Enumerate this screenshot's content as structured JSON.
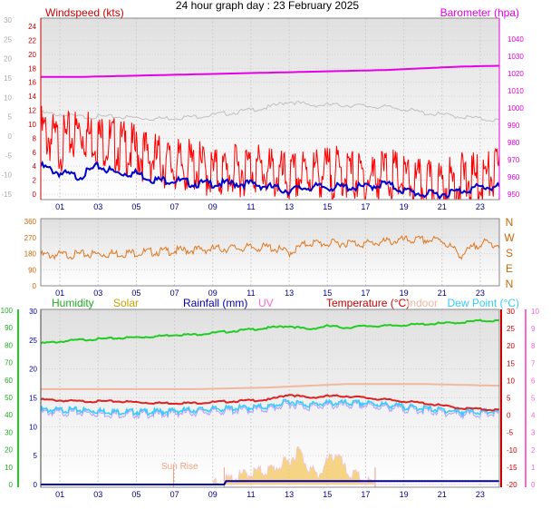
{
  "header": {
    "title": "24 hour graph day : 23 February 2025"
  },
  "chart_data": [
    {
      "type": "line",
      "panel": "wind-baro",
      "left_label": "Windspeed (kts)",
      "right_label": "Barometer (hpa)",
      "x_ticks": [
        "01",
        "03",
        "05",
        "07",
        "09",
        "11",
        "13",
        "15",
        "17",
        "19",
        "21",
        "23"
      ],
      "wind_ticks": [
        24,
        22,
        20,
        18,
        16,
        14,
        12,
        10,
        8,
        6,
        4,
        2,
        0
      ],
      "temp_ticks_outer": [
        30,
        25,
        20,
        15,
        10,
        5,
        0,
        -5,
        -10,
        -15
      ],
      "baro_ticks": [
        1040,
        1030,
        1020,
        1010,
        1000,
        990,
        980,
        970,
        960,
        950
      ],
      "colors": {
        "wind_gust": "#ff0000",
        "wind_avg": "#0000cc",
        "barometer": "#e600e6",
        "temperature": "#c0c0c0",
        "left_axis": "#cc0000",
        "right_axis": "#e600e6"
      },
      "series": [
        {
          "key": "barometer",
          "hours": [
            0,
            2,
            4,
            6,
            8,
            10,
            12,
            14,
            16,
            18,
            20,
            22,
            24
          ],
          "values": [
            1018,
            1018,
            1018.5,
            1019,
            1019.5,
            1020,
            1020.5,
            1021,
            1021.5,
            1022,
            1023,
            1024,
            1024.5
          ]
        },
        {
          "key": "temperature",
          "hours": [
            0,
            2,
            4,
            6,
            8,
            10,
            12,
            13,
            14,
            15,
            16,
            18,
            19,
            20,
            22,
            24
          ],
          "values": [
            6,
            5,
            5,
            4.5,
            5,
            6,
            7.5,
            9,
            8,
            8,
            8,
            7.5,
            7,
            6,
            5,
            4
          ]
        },
        {
          "key": "wind_avg",
          "hours": [
            0,
            1,
            2,
            3,
            4,
            5,
            6,
            7,
            8,
            9,
            10,
            11,
            12,
            13,
            14,
            15,
            16,
            17,
            18,
            19,
            20,
            21,
            22,
            23,
            24
          ],
          "values": [
            4,
            3,
            2.5,
            4,
            3,
            3,
            2,
            2,
            1.5,
            1.5,
            1.5,
            1.5,
            1,
            0.5,
            1,
            1,
            1,
            1,
            1.5,
            0.5,
            0,
            0,
            0.5,
            1,
            1
          ]
        },
        {
          "key": "wind_gust",
          "hours": [
            0,
            1,
            2,
            3,
            4,
            5,
            6,
            7,
            8,
            9,
            10,
            11,
            12,
            13,
            14,
            15,
            16,
            17,
            18,
            19,
            20,
            21,
            22,
            23,
            24
          ],
          "values": [
            9,
            7,
            9,
            8,
            7,
            6,
            5,
            4,
            4,
            3,
            3,
            4,
            3,
            2,
            3,
            3,
            3,
            2,
            3,
            2,
            1,
            1,
            2,
            2,
            3
          ]
        }
      ]
    },
    {
      "type": "scatter",
      "panel": "wind-direction",
      "left_ticks": [
        360,
        270,
        180,
        90,
        0
      ],
      "compass": [
        "N",
        "W",
        "S",
        "E",
        "N"
      ],
      "colors": {
        "direction": "#e07820"
      },
      "series": [
        {
          "key": "direction",
          "hours": [
            0,
            2,
            4,
            6,
            8,
            10,
            12,
            13,
            14,
            15,
            16,
            17,
            18,
            19,
            20,
            21,
            22,
            23,
            24
          ],
          "values": [
            170,
            175,
            180,
            190,
            200,
            210,
            215,
            185,
            240,
            235,
            240,
            235,
            245,
            255,
            255,
            255,
            170,
            240,
            230
          ]
        }
      ]
    },
    {
      "type": "line",
      "panel": "temp-hum-solar",
      "labels": {
        "humidity": "Humidity",
        "solar": "Solar",
        "rainfall": "Rainfall (mm)",
        "uv": "UV",
        "temperature": "Temperature (°C)",
        "indoor": "Indoor",
        "dewpoint": "Dew Point (°C)",
        "sunrise": "Sun Rise"
      },
      "humidity_ticks": [
        100,
        90,
        80,
        70,
        60,
        50,
        40,
        30,
        20,
        10,
        0
      ],
      "rain_ticks": [
        30,
        25,
        20,
        15,
        10,
        5,
        0
      ],
      "temp_ticks": [
        30,
        25,
        20,
        15,
        10,
        5,
        0,
        -5,
        -10,
        -15,
        -20
      ],
      "uv_ticks": [
        10,
        9,
        8,
        7,
        6,
        5,
        4,
        3,
        2,
        1,
        0
      ],
      "colors": {
        "humidity": "#22cc22",
        "solar": "#f0c040",
        "rainfall": "#0000aa",
        "uv": "#ff66cc",
        "temperature": "#dd2222",
        "indoor": "#f0b8a0",
        "dewpoint": "#33ccff",
        "apparent": "#b0a0ff"
      },
      "series": [
        {
          "key": "humidity",
          "hours": [
            0,
            1,
            2,
            4,
            6,
            7,
            8,
            9,
            10,
            12,
            13,
            14,
            15,
            16,
            17,
            18,
            20,
            22,
            23,
            24
          ],
          "values": [
            81,
            82,
            83,
            84,
            85,
            86,
            86,
            87,
            88,
            90,
            91,
            89,
            91,
            90,
            91,
            91,
            92,
            93,
            94,
            94
          ]
        },
        {
          "key": "indoor",
          "hours": [
            0,
            4,
            8,
            12,
            16,
            20,
            24
          ],
          "values": [
            7.5,
            7.5,
            7.5,
            8,
            9,
            9,
            8.5
          ]
        },
        {
          "key": "temperature",
          "hours": [
            0,
            2,
            4,
            6,
            8,
            10,
            12,
            13,
            14,
            15,
            16,
            17,
            18,
            20,
            22,
            24
          ],
          "values": [
            4.5,
            4,
            4,
            3.5,
            3.5,
            4,
            4.5,
            6,
            5,
            5.5,
            5.5,
            5,
            4.5,
            3.5,
            2,
            1.5
          ]
        },
        {
          "key": "dewpoint",
          "hours": [
            0,
            2,
            4,
            6,
            8,
            10,
            12,
            13,
            14,
            15,
            16,
            17,
            18,
            20,
            22,
            24
          ],
          "values": [
            1.5,
            1.5,
            1,
            1,
            1.5,
            2,
            2.5,
            4,
            3,
            3.5,
            3.5,
            3.5,
            3,
            2,
            1,
            1
          ]
        },
        {
          "key": "solar",
          "hours": [
            0,
            6,
            9,
            10,
            11,
            12,
            13,
            13.5,
            14,
            14.5,
            15,
            15.5,
            16,
            16.5,
            17,
            17.5,
            18,
            24
          ],
          "values": [
            0,
            0,
            0,
            1,
            2,
            2.5,
            4,
            6,
            3,
            1.5,
            4,
            5.5,
            2,
            1.5,
            0.5,
            0,
            0,
            0
          ]
        },
        {
          "key": "rainfall",
          "hours": [
            0,
            9.6,
            9.7,
            24
          ],
          "values": [
            0,
            0,
            0.6,
            0.6
          ]
        }
      ]
    }
  ]
}
